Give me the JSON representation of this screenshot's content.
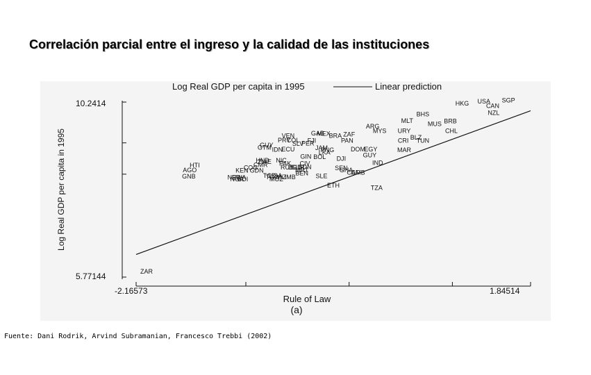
{
  "slide": {
    "title": "Correlación parcial entre el ingreso y la calidad de las instituciones",
    "source": "Fuente: Dani Rodrik, Arvind Subramanian, Francesco Trebbi (2002)"
  },
  "chart_data": {
    "type": "scatter",
    "legend": {
      "series_label": "Log Real GDP per capita in 1995",
      "line_label": "Linear prediction"
    },
    "xlabel": "Rule of Law",
    "ylabel": "Log Real GDP per capita in 1995",
    "panel_label": "(a)",
    "xlim": [
      -2.16573,
      1.84514
    ],
    "ylim": [
      5.77144,
      10.2414
    ],
    "x_tick_labels": [
      "-2.16573",
      "1.84514"
    ],
    "y_tick_labels": [
      "10.2414",
      "5.77144"
    ],
    "x_ticks": [
      -2.16573,
      -1.05,
      0.0,
      1.05,
      1.84514
    ],
    "y_ticks": [
      10.2414,
      9.2,
      8.4,
      5.77144
    ],
    "fit_line": {
      "x": [
        -2.16573,
        1.84514
      ],
      "y": [
        6.35,
        10.02
      ]
    },
    "colors": {
      "background": "#f4f4f4",
      "ink": "#111111"
    },
    "points": [
      {
        "label": "SGP",
        "x": 1.62,
        "y": 10.23
      },
      {
        "label": "USA",
        "x": 1.37,
        "y": 10.21
      },
      {
        "label": "HKG",
        "x": 1.15,
        "y": 10.15
      },
      {
        "label": "CAN",
        "x": 1.46,
        "y": 10.09
      },
      {
        "label": "NZL",
        "x": 1.47,
        "y": 9.91
      },
      {
        "label": "BHS",
        "x": 0.75,
        "y": 9.88
      },
      {
        "label": "BRB",
        "x": 1.03,
        "y": 9.7
      },
      {
        "label": "MLT",
        "x": 0.59,
        "y": 9.71
      },
      {
        "label": "MUS",
        "x": 0.87,
        "y": 9.63
      },
      {
        "label": "ARG",
        "x": 0.24,
        "y": 9.57
      },
      {
        "label": "MYS",
        "x": 0.31,
        "y": 9.45
      },
      {
        "label": "URY",
        "x": 0.56,
        "y": 9.45
      },
      {
        "label": "CHL",
        "x": 1.04,
        "y": 9.45
      },
      {
        "label": "GAB",
        "x": -0.32,
        "y": 9.39
      },
      {
        "label": "MEX",
        "x": -0.26,
        "y": 9.38
      },
      {
        "label": "BRA",
        "x": -0.14,
        "y": 9.33
      },
      {
        "label": "ZAF",
        "x": 0.0,
        "y": 9.36
      },
      {
        "label": "VEN",
        "x": -0.62,
        "y": 9.33
      },
      {
        "label": "BLZ",
        "x": 0.68,
        "y": 9.28
      },
      {
        "label": "CRI",
        "x": 0.55,
        "y": 9.2
      },
      {
        "label": "TUN",
        "x": 0.75,
        "y": 9.2
      },
      {
        "label": "PRY",
        "x": -0.66,
        "y": 9.21
      },
      {
        "label": "COL",
        "x": -0.57,
        "y": 9.21
      },
      {
        "label": "FJI",
        "x": -0.38,
        "y": 9.2
      },
      {
        "label": "PAN",
        "x": -0.02,
        "y": 9.2
      },
      {
        "label": "SLV",
        "x": -0.52,
        "y": 9.12
      },
      {
        "label": "PER",
        "x": -0.42,
        "y": 9.13
      },
      {
        "label": "GUY",
        "x": -0.84,
        "y": 9.09
      },
      {
        "label": "GTM",
        "x": -0.86,
        "y": 9.03
      },
      {
        "label": "IDN",
        "x": -0.73,
        "y": 8.97
      },
      {
        "label": "ECU",
        "x": -0.62,
        "y": 8.98
      },
      {
        "label": "JAM",
        "x": -0.28,
        "y": 9.02
      },
      {
        "label": "PNG",
        "x": -0.22,
        "y": 8.96
      },
      {
        "label": "LKA",
        "x": -0.25,
        "y": 8.9
      },
      {
        "label": "DOM",
        "x": 0.09,
        "y": 8.98
      },
      {
        "label": "EGY",
        "x": 0.22,
        "y": 8.98
      },
      {
        "label": "MAR",
        "x": 0.56,
        "y": 8.96
      },
      {
        "label": "GUY",
        "x": 0.21,
        "y": 8.83
      },
      {
        "label": "GIN",
        "x": -0.44,
        "y": 8.8
      },
      {
        "label": "BOL",
        "x": -0.3,
        "y": 8.79
      },
      {
        "label": "DJI",
        "x": -0.08,
        "y": 8.74
      },
      {
        "label": "IND",
        "x": 0.29,
        "y": 8.64
      },
      {
        "label": "HND",
        "x": -0.88,
        "y": 8.7
      },
      {
        "label": "NIC",
        "x": -0.69,
        "y": 8.7
      },
      {
        "label": "ZWE",
        "x": -0.86,
        "y": 8.66
      },
      {
        "label": "PAK",
        "x": -0.65,
        "y": 8.62
      },
      {
        "label": "CIV",
        "x": -0.45,
        "y": 8.62
      },
      {
        "label": "HTI",
        "x": -1.57,
        "y": 8.57
      },
      {
        "label": "CMR",
        "x": -0.9,
        "y": 8.58
      },
      {
        "label": "RUS",
        "x": -0.63,
        "y": 8.52
      },
      {
        "label": "SUR",
        "x": -0.52,
        "y": 8.52
      },
      {
        "label": "BGD",
        "x": -0.55,
        "y": 8.52
      },
      {
        "label": "SDN",
        "x": -0.45,
        "y": 8.53
      },
      {
        "label": "COG",
        "x": -1.0,
        "y": 8.51
      },
      {
        "label": "SEN",
        "x": -0.08,
        "y": 8.5
      },
      {
        "label": "AGO",
        "x": -1.62,
        "y": 8.45
      },
      {
        "label": "KEN",
        "x": -1.09,
        "y": 8.44
      },
      {
        "label": "MRT",
        "x": -0.48,
        "y": 8.45
      },
      {
        "label": "GHA",
        "x": -0.03,
        "y": 8.45
      },
      {
        "label": "GDN",
        "x": -0.94,
        "y": 8.44
      },
      {
        "label": "BEN",
        "x": -0.48,
        "y": 8.37
      },
      {
        "label": "GMB",
        "x": 0.09,
        "y": 8.39
      },
      {
        "label": "CAF",
        "x": 0.04,
        "y": 8.39
      },
      {
        "label": "TCD",
        "x": -0.81,
        "y": 8.31
      },
      {
        "label": "UGA",
        "x": -0.75,
        "y": 8.31
      },
      {
        "label": "SLE",
        "x": -0.28,
        "y": 8.3
      },
      {
        "label": "GNB",
        "x": -1.63,
        "y": 8.29
      },
      {
        "label": "NER",
        "x": -1.17,
        "y": 8.26
      },
      {
        "label": "RWA",
        "x": -1.12,
        "y": 8.26
      },
      {
        "label": "TGO",
        "x": -0.78,
        "y": 8.27
      },
      {
        "label": "MLI",
        "x": -0.69,
        "y": 8.27
      },
      {
        "label": "ZMB",
        "x": -0.61,
        "y": 8.27
      },
      {
        "label": "NGA",
        "x": -1.14,
        "y": 8.22
      },
      {
        "label": "BDI",
        "x": -1.08,
        "y": 8.22
      },
      {
        "label": "MOZ",
        "x": -0.74,
        "y": 8.22
      },
      {
        "label": "ETH",
        "x": -0.16,
        "y": 8.06
      },
      {
        "label": "TZA",
        "x": 0.28,
        "y": 8.0
      },
      {
        "label": "ZAR",
        "x": -2.06,
        "y": 5.86
      }
    ]
  }
}
